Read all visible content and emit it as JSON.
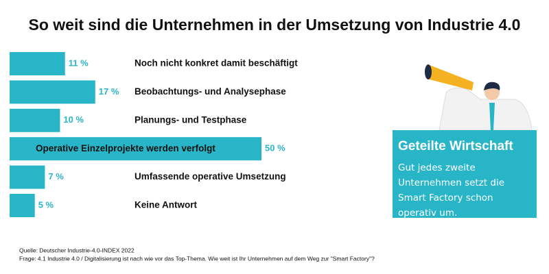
{
  "chart_data": {
    "type": "bar",
    "orientation": "horizontal",
    "title": "So weit sind die Unternehmen in der Umsetzung von Industrie 4.0",
    "categories": [
      "Noch nicht konkret damit beschäftigt",
      "Beobachtungs- und Analysephase",
      "Planungs- und Testphase",
      "Operative Einzelprojekte werden verfolgt",
      "Umfassende operative Umsetzung",
      "Keine Antwort"
    ],
    "values": [
      11,
      17,
      10,
      50,
      7,
      5
    ],
    "value_labels": [
      "11 %",
      "17 %",
      "10 %",
      "50 %",
      "7 %",
      "5 %"
    ],
    "color": "#29b5c8",
    "xlim": [
      0,
      50
    ]
  },
  "panel": {
    "title": "Geteilte Wirtschaft",
    "text": "Gut jedes zweite Unternehmen setzt die Smart Factory schon operativ um."
  },
  "notes": [
    "Quelle: Deutscher Industrie-4.0-INDEX 2022",
    "Frage: 4.1 Industrie 4.0 / Digitalisierung ist nach wie vor das Top-Thema. Wie weit ist Ihr Unternehmen auf dem Weg zur \"Smart Factory\"?"
  ]
}
